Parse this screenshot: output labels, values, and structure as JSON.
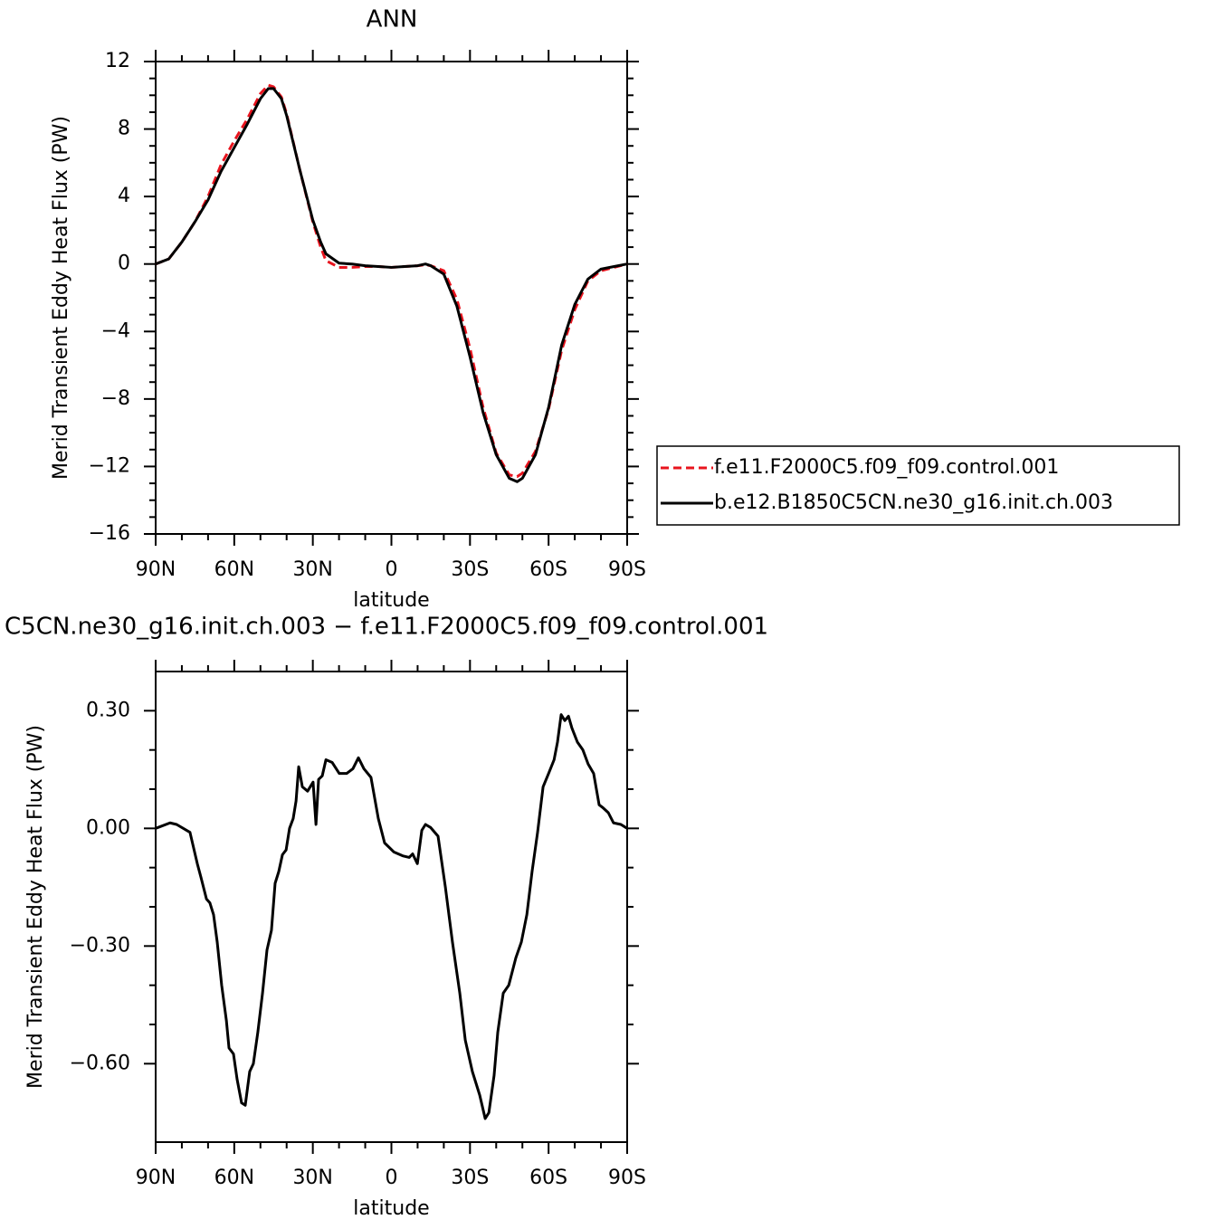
{
  "chart_data": [
    {
      "type": "line",
      "title": "ANN",
      "xlabel": "latitude",
      "ylabel": "Merid Transient Eddy Heat Flux (PW)",
      "x": [
        90,
        85,
        80,
        75,
        70,
        65,
        60,
        55,
        50,
        47,
        45,
        42,
        40,
        35,
        30,
        27,
        25,
        20,
        15,
        10,
        5,
        0,
        -5,
        -10,
        -13,
        -15,
        -20,
        -25,
        -30,
        -35,
        -40,
        -45,
        -48,
        -50,
        -55,
        -60,
        -65,
        -70,
        -75,
        -80,
        -85,
        -90
      ],
      "series": [
        {
          "name": "f.e11.F2000C5.f09_f09.control.001",
          "color": "#e8141e",
          "dash": true,
          "values": [
            0,
            0.3,
            1.3,
            2.5,
            4.0,
            5.9,
            7.3,
            8.6,
            10.1,
            10.6,
            10.5,
            9.9,
            8.9,
            5.6,
            2.5,
            1.0,
            0.2,
            -0.2,
            -0.2,
            -0.15,
            -0.15,
            -0.2,
            -0.15,
            -0.1,
            -0.05,
            -0.1,
            -0.4,
            -2.1,
            -5.0,
            -8.5,
            -11.2,
            -12.5,
            -12.6,
            -12.4,
            -11.1,
            -8.6,
            -5.1,
            -2.7,
            -1.0,
            -0.4,
            -0.2,
            0
          ]
        },
        {
          "name": "b.e12.B1850C5CN.ne30_g16.init.ch.003",
          "color": "#000000",
          "dash": false,
          "values": [
            0,
            0.3,
            1.3,
            2.5,
            3.8,
            5.5,
            6.9,
            8.3,
            9.8,
            10.4,
            10.4,
            9.8,
            8.8,
            5.6,
            2.6,
            1.3,
            0.6,
            0.05,
            0,
            -0.1,
            -0.15,
            -0.2,
            -0.15,
            -0.1,
            0,
            -0.1,
            -0.6,
            -2.5,
            -5.5,
            -8.8,
            -11.3,
            -12.7,
            -12.9,
            -12.7,
            -11.3,
            -8.5,
            -4.8,
            -2.4,
            -0.9,
            -0.3,
            -0.15,
            0
          ]
        }
      ],
      "xlim": [
        90,
        -90
      ],
      "xticks": [
        {
          "value": 90,
          "label": "90N"
        },
        {
          "value": 60,
          "label": "60N"
        },
        {
          "value": 30,
          "label": "30N"
        },
        0,
        {
          "value": -30,
          "label": "30S"
        },
        {
          "value": -60,
          "label": "60S"
        },
        {
          "value": -90,
          "label": "90S"
        }
      ],
      "ylim": [
        -16,
        12
      ],
      "yticks": [
        {
          "value": -16,
          "label": "−16"
        },
        {
          "value": -12,
          "label": "−12"
        },
        {
          "value": -8,
          "label": "−8"
        },
        {
          "value": -4,
          "label": "−4"
        },
        0,
        4,
        8,
        12
      ],
      "legend": "right"
    },
    {
      "type": "line",
      "title": "C5CN.ne30_g16.init.ch.003 − f.e11.F2000C5.f09_f09.control.001",
      "xlabel": "latitude",
      "ylabel": "Merid Transient Eddy Heat Flux (PW)",
      "x": [
        90,
        84.5,
        82,
        76.9,
        74.1,
        72.7,
        70.6,
        69.3,
        67.9,
        66.5,
        64.8,
        63.0,
        62.0,
        60.3,
        58.9,
        57.2,
        55.8,
        54.1,
        52.7,
        51.0,
        49.2,
        47.5,
        45.8,
        44.4,
        43.0,
        41.6,
        40.2,
        38.9,
        37.5,
        36.4,
        35.4,
        34.0,
        32.0,
        29.9,
        28.8,
        27.8,
        26.4,
        25.0,
        22.6,
        19.9,
        17.1,
        14.7,
        12.6,
        10.5,
        7.8,
        5.0,
        2.6,
        -0.9,
        -4.3,
        -6.8,
        -8.1,
        -9.9,
        -11.6,
        -13.0,
        -15.0,
        -17.8,
        -20.6,
        -23.3,
        -26.1,
        -28.2,
        -30.9,
        -33.7,
        -35.8,
        -37.2,
        -39.2,
        -40.6,
        -42.7,
        -44.8,
        -47.5,
        -49.6,
        -51.7,
        -53.7,
        -55.8,
        -57.9,
        -60.0,
        -62.1,
        -63.4,
        -64.8,
        -66.2,
        -67.6,
        -68.9,
        -71.0,
        -73.1,
        -75.1,
        -77.2,
        -79.3,
        -80.7,
        -82.8,
        -84.8,
        -87.6,
        -90
      ],
      "series": [
        {
          "color": "#000000",
          "dash": false,
          "values": [
            0,
            0.014,
            0.01,
            -0.01,
            -0.09,
            -0.125,
            -0.18,
            -0.19,
            -0.22,
            -0.29,
            -0.4,
            -0.49,
            -0.56,
            -0.575,
            -0.64,
            -0.7,
            -0.706,
            -0.62,
            -0.6,
            -0.52,
            -0.42,
            -0.31,
            -0.26,
            -0.14,
            -0.11,
            -0.067,
            -0.055,
            0.0,
            0.025,
            0.07,
            0.157,
            0.106,
            0.095,
            0.118,
            0.01,
            0.125,
            0.134,
            0.175,
            0.168,
            0.14,
            0.14,
            0.152,
            0.18,
            0.152,
            0.13,
            0.025,
            -0.037,
            -0.06,
            -0.07,
            -0.074,
            -0.065,
            -0.09,
            -0.005,
            0.01,
            0.002,
            -0.02,
            -0.15,
            -0.29,
            -0.42,
            -0.54,
            -0.62,
            -0.68,
            -0.74,
            -0.725,
            -0.63,
            -0.52,
            -0.42,
            -0.4,
            -0.33,
            -0.29,
            -0.22,
            -0.11,
            -0.01,
            0.106,
            0.14,
            0.175,
            0.22,
            0.29,
            0.275,
            0.286,
            0.256,
            0.22,
            0.2,
            0.164,
            0.14,
            0.06,
            0.053,
            0.04,
            0.014,
            0.01,
            0
          ]
        }
      ],
      "xlim": [
        90,
        -90
      ],
      "xticks": [
        {
          "value": 90,
          "label": "90N"
        },
        {
          "value": 60,
          "label": "60N"
        },
        {
          "value": 30,
          "label": "30N"
        },
        0,
        {
          "value": -30,
          "label": "30S"
        },
        {
          "value": -60,
          "label": "60S"
        },
        {
          "value": -90,
          "label": "90S"
        }
      ],
      "ylim": [
        -0.8,
        0.4
      ],
      "yticks": [
        {
          "value": -0.6,
          "label": "−0.60"
        },
        {
          "value": -0.3,
          "label": "−0.30"
        },
        {
          "value": 0,
          "label": "0.00"
        },
        {
          "value": 0.3,
          "label": "0.30"
        }
      ]
    }
  ]
}
